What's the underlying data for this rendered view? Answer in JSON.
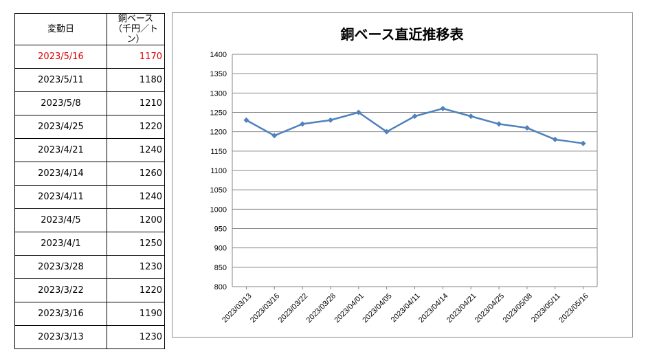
{
  "table": {
    "header_date": "変動日",
    "header_price_line1": "銅ベース",
    "header_price_line2": "（千円／トン）",
    "highlight_color": "#e00000",
    "rows": [
      {
        "date": "2023/5/16",
        "price": "1170",
        "highlight": true
      },
      {
        "date": "2023/5/11",
        "price": "1180"
      },
      {
        "date": "2023/5/8",
        "price": "1210"
      },
      {
        "date": "2023/4/25",
        "price": "1220"
      },
      {
        "date": "2023/4/21",
        "price": "1240"
      },
      {
        "date": "2023/4/14",
        "price": "1260"
      },
      {
        "date": "2023/4/11",
        "price": "1240"
      },
      {
        "date": "2023/4/5",
        "price": "1200"
      },
      {
        "date": "2023/4/1",
        "price": "1250"
      },
      {
        "date": "2023/3/28",
        "price": "1230"
      },
      {
        "date": "2023/3/22",
        "price": "1220"
      },
      {
        "date": "2023/3/16",
        "price": "1190"
      },
      {
        "date": "2023/3/13",
        "price": "1230"
      }
    ]
  },
  "chart_data": {
    "type": "line",
    "title": "銅ベース直近推移表",
    "xlabel": "",
    "ylabel": "",
    "ylim": [
      800,
      1400
    ],
    "ytick_step": 50,
    "grid": true,
    "legend": "none",
    "categories": [
      "2023/03/13",
      "2023/03/16",
      "2023/03/22",
      "2023/03/28",
      "2023/04/01",
      "2023/04/05",
      "2023/04/11",
      "2023/04/14",
      "2023/04/21",
      "2023/04/25",
      "2023/05/08",
      "2023/05/11",
      "2023/05/16"
    ],
    "series": [
      {
        "values": [
          1230,
          1190,
          1220,
          1230,
          1250,
          1200,
          1240,
          1260,
          1240,
          1220,
          1210,
          1180,
          1170
        ],
        "color": "#4f81bd",
        "marker": "diamond"
      }
    ]
  }
}
